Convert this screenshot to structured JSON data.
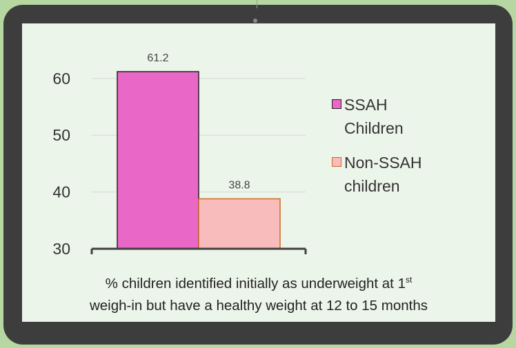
{
  "chart_data": {
    "type": "bar",
    "categories": [
      ""
    ],
    "series": [
      {
        "name": "SSAH Children",
        "values": [
          61.2
        ],
        "fill": "#e967c6",
        "stroke": "#222222"
      },
      {
        "name": "Non-SSAH children",
        "values": [
          38.8
        ],
        "fill": "#f8bcbc",
        "stroke": "#d2691e"
      }
    ],
    "data_labels": [
      "61.2",
      "38.8"
    ],
    "y_ticks": [
      "30",
      "40",
      "50",
      "60"
    ],
    "ylim": [
      30,
      63.5
    ],
    "grid": true,
    "legend_placement": "right",
    "title": "",
    "xlabel": "",
    "ylabel": ""
  },
  "caption": {
    "line1_main": "% children identified initially as underweight at 1",
    "line1_sup": "st",
    "line2": "weigh-in but have a healthy weight at 12 to 15 months"
  }
}
